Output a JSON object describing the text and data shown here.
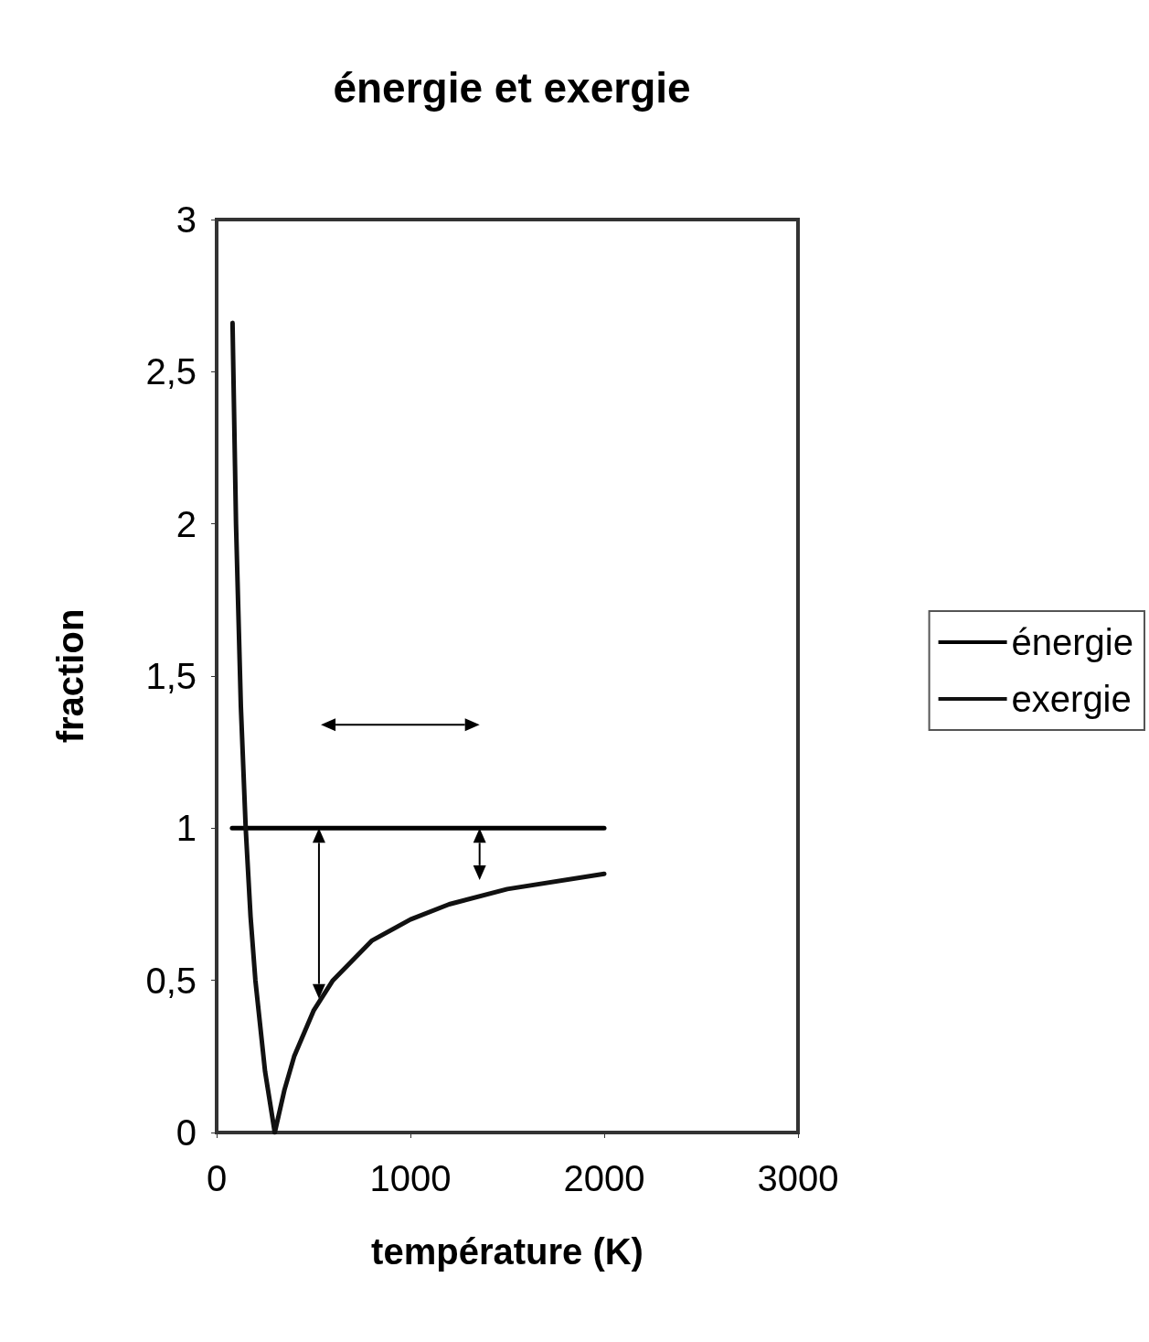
{
  "chart_data": {
    "type": "line",
    "title": "énergie et exergie",
    "xlabel": "température (K)",
    "ylabel": "fraction",
    "xlim": [
      0,
      3000
    ],
    "xticks": [
      0,
      1000,
      2000,
      3000
    ],
    "ylim": [
      0,
      3
    ],
    "yticks": [
      0,
      {
        "value": 0.5,
        "label": "0,5"
      },
      1,
      {
        "value": 1.5,
        "label": "1,5"
      },
      2,
      {
        "value": 2.5,
        "label": "2,5"
      },
      3
    ],
    "series": [
      {
        "name": "énergie",
        "color": "#000000",
        "x": [
          80,
          2000
        ],
        "values": [
          1,
          1
        ]
      },
      {
        "name": "exergie",
        "color": "#111111",
        "x": [
          82,
          100,
          125,
          150,
          175,
          200,
          250,
          300,
          350,
          400,
          500,
          600,
          800,
          1000,
          1200,
          1500,
          2000
        ],
        "values": [
          2.66,
          2,
          1.4,
          1,
          0.71,
          0.5,
          0.2,
          0,
          0.14,
          0.25,
          0.4,
          0.5,
          0.63,
          0.7,
          0.75,
          0.8,
          0.85
        ]
      }
    ],
    "legend": "right",
    "grid": false,
    "marker": "none",
    "line_style": "solid"
  }
}
